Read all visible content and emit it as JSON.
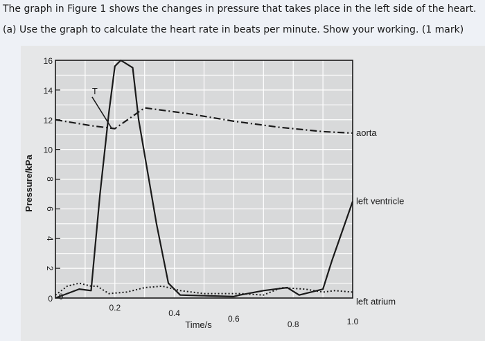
{
  "question": {
    "intro": "The graph in Figure 1 shows the changes in pressure that takes place in the left side of the heart.",
    "part_a": "(a) Use the graph to calculate the heart rate in beats per minute. Show your working. (1 mark)"
  },
  "chart_data": {
    "type": "line",
    "title": "",
    "xlabel": "Time/s",
    "ylabel": "Pressure/kPa",
    "xlim": [
      0,
      1.0
    ],
    "ylim": [
      0,
      16
    ],
    "x_ticks": [
      "0",
      "0.2",
      "0.4",
      "0.6",
      "0.8",
      "1.0"
    ],
    "y_ticks": [
      "0",
      "2",
      "4",
      "6",
      "8",
      "10",
      "12",
      "14",
      "16"
    ],
    "grid": true,
    "annotations": [
      {
        "text": "T",
        "x": 0.1,
        "y": 14
      }
    ],
    "series": [
      {
        "name": "aorta",
        "style": "dash-dot",
        "x": [
          0.0,
          0.12,
          0.2,
          0.3,
          0.45,
          0.6,
          0.75,
          0.9,
          1.0
        ],
        "y": [
          12.0,
          11.6,
          11.4,
          12.8,
          12.4,
          11.9,
          11.5,
          11.2,
          11.1
        ]
      },
      {
        "name": "left ventricle",
        "style": "solid",
        "x": [
          0.0,
          0.08,
          0.12,
          0.15,
          0.18,
          0.2,
          0.22,
          0.26,
          0.28,
          0.34,
          0.38,
          0.42,
          0.6,
          0.62,
          0.7,
          0.78,
          0.82,
          0.9,
          0.93,
          1.0
        ],
        "y": [
          0.0,
          0.6,
          0.5,
          7.0,
          12.5,
          15.6,
          16.0,
          15.5,
          12.0,
          5.0,
          1.0,
          0.2,
          0.1,
          0.2,
          0.5,
          0.7,
          0.2,
          0.6,
          2.5,
          6.5
        ]
      },
      {
        "name": "left atrium",
        "style": "dotted",
        "x": [
          0.0,
          0.04,
          0.08,
          0.12,
          0.14,
          0.18,
          0.24,
          0.3,
          0.36,
          0.38,
          0.42,
          0.5,
          0.62,
          0.7,
          0.76,
          0.84,
          0.9,
          0.94,
          1.0
        ],
        "y": [
          0.2,
          0.8,
          1.0,
          0.8,
          0.8,
          0.3,
          0.4,
          0.7,
          0.8,
          0.7,
          0.5,
          0.3,
          0.3,
          0.2,
          0.7,
          0.6,
          0.4,
          0.5,
          0.4
        ]
      }
    ],
    "colors": {
      "line": "#1a1a1a",
      "grid": "#ffffff",
      "plot_bg": "#d8d9da"
    }
  }
}
